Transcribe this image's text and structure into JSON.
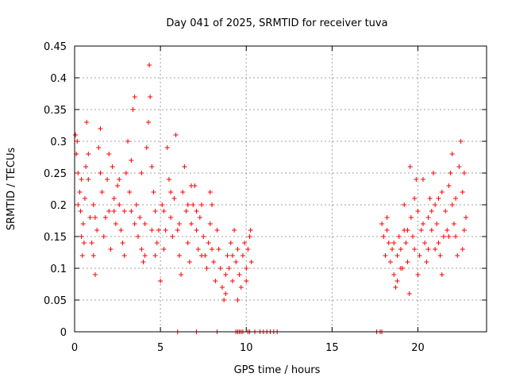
{
  "chart_data": {
    "type": "scatter",
    "title": "Day 041 of 2025, SRMTID for receiver tuva",
    "xlabel": "GPS time / hours",
    "ylabel": "SRMTID / TECUs",
    "xlim": [
      0,
      24
    ],
    "ylim": [
      0,
      0.45
    ],
    "xticks": [
      0,
      5,
      10,
      15,
      20
    ],
    "xtick_labels": [
      "0",
      "5",
      "10",
      "15",
      "20"
    ],
    "yticks": [
      0,
      0.05,
      0.1,
      0.15,
      0.2,
      0.25,
      0.3,
      0.35,
      0.4,
      0.45
    ],
    "ytick_labels": [
      "0",
      "0.05",
      "0.1",
      "0.15",
      "0.2",
      "0.25",
      "0.3",
      "0.35",
      "0.4",
      "0.45"
    ],
    "grid": true,
    "marker": "+",
    "color": "#ff0000",
    "series": [
      {
        "name": "SRMTID",
        "points": [
          [
            0.05,
            0.31
          ],
          [
            0.1,
            0.28
          ],
          [
            0.15,
            0.3
          ],
          [
            0.2,
            0.25
          ],
          [
            0.3,
            0.22
          ],
          [
            0.35,
            0.19
          ],
          [
            0.4,
            0.15
          ],
          [
            0.45,
            0.12
          ],
          [
            0.5,
            0.17
          ],
          [
            0.6,
            0.21
          ],
          [
            0.65,
            0.26
          ],
          [
            0.7,
            0.33
          ],
          [
            0.8,
            0.24
          ],
          [
            0.9,
            0.18
          ],
          [
            1.0,
            0.14
          ],
          [
            1.1,
            0.2
          ],
          [
            1.2,
            0.09
          ],
          [
            1.3,
            0.16
          ],
          [
            1.4,
            0.29
          ],
          [
            1.5,
            0.32
          ],
          [
            1.6,
            0.22
          ],
          [
            1.7,
            0.15
          ],
          [
            1.8,
            0.18
          ],
          [
            1.9,
            0.24
          ],
          [
            2.0,
            0.19
          ],
          [
            2.1,
            0.13
          ],
          [
            2.2,
            0.26
          ],
          [
            2.3,
            0.21
          ],
          [
            2.4,
            0.17
          ],
          [
            2.5,
            0.23
          ],
          [
            2.6,
            0.2
          ],
          [
            2.7,
            0.16
          ],
          [
            2.8,
            0.14
          ],
          [
            2.9,
            0.19
          ],
          [
            3.0,
            0.25
          ],
          [
            3.1,
            0.3
          ],
          [
            3.2,
            0.22
          ],
          [
            3.3,
            0.27
          ],
          [
            3.4,
            0.35
          ],
          [
            3.5,
            0.37
          ],
          [
            3.6,
            0.2
          ],
          [
            3.7,
            0.15
          ],
          [
            3.8,
            0.18
          ],
          [
            3.9,
            0.13
          ],
          [
            4.0,
            0.11
          ],
          [
            4.1,
            0.17
          ],
          [
            4.2,
            0.29
          ],
          [
            4.3,
            0.33
          ],
          [
            4.35,
            0.42
          ],
          [
            4.4,
            0.37
          ],
          [
            4.5,
            0.26
          ],
          [
            4.6,
            0.22
          ],
          [
            4.7,
            0.19
          ],
          [
            4.8,
            0.14
          ],
          [
            4.9,
            0.16
          ],
          [
            5.0,
            0.08
          ],
          [
            5.1,
            0.2
          ],
          [
            5.2,
            0.13
          ],
          [
            5.3,
            0.16
          ],
          [
            5.4,
            0.29
          ],
          [
            5.5,
            0.24
          ],
          [
            5.6,
            0.18
          ],
          [
            5.7,
            0.15
          ],
          [
            5.8,
            0.21
          ],
          [
            5.9,
            0.31
          ],
          [
            6.0,
            0.16
          ],
          [
            6.1,
            0.12
          ],
          [
            6.2,
            0.09
          ],
          [
            6.3,
            0.22
          ],
          [
            6.4,
            0.26
          ],
          [
            6.5,
            0.19
          ],
          [
            6.6,
            0.14
          ],
          [
            6.7,
            0.11
          ],
          [
            6.8,
            0.17
          ],
          [
            6.9,
            0.2
          ],
          [
            7.0,
            0.23
          ],
          [
            7.1,
            0.16
          ],
          [
            7.2,
            0.13
          ],
          [
            7.3,
            0.18
          ],
          [
            7.4,
            0.2
          ],
          [
            7.5,
            0.15
          ],
          [
            7.6,
            0.12
          ],
          [
            7.7,
            0.1
          ],
          [
            7.8,
            0.14
          ],
          [
            7.9,
            0.17
          ],
          [
            8.0,
            0.13
          ],
          [
            8.1,
            0.11
          ],
          [
            8.2,
            0.08
          ],
          [
            8.3,
            0.16
          ],
          [
            8.4,
            0.13
          ],
          [
            8.5,
            0.1
          ],
          [
            8.6,
            0.07
          ],
          [
            8.7,
            0.05
          ],
          [
            8.8,
            0.09
          ],
          [
            8.9,
            0.12
          ],
          [
            9.0,
            0.1
          ],
          [
            9.1,
            0.14
          ],
          [
            9.2,
            0.12
          ],
          [
            9.3,
            0.16
          ],
          [
            9.4,
            0.11
          ],
          [
            9.5,
            0.13
          ],
          [
            9.6,
            0.09
          ],
          [
            9.7,
            0.07
          ],
          [
            9.8,
            0.12
          ],
          [
            9.9,
            0.14
          ],
          [
            10.0,
            0.1
          ],
          [
            10.1,
            0.13
          ],
          [
            10.2,
            0.15
          ],
          [
            10.25,
            0.16
          ],
          [
            10.3,
            0.11
          ],
          [
            0.2,
            0.2
          ],
          [
            0.8,
            0.28
          ],
          [
            1.5,
            0.25
          ],
          [
            2.0,
            0.28
          ],
          [
            2.6,
            0.24
          ],
          [
            3.3,
            0.19
          ],
          [
            3.9,
            0.25
          ],
          [
            4.5,
            0.16
          ],
          [
            5.2,
            0.19
          ],
          [
            6.1,
            0.17
          ],
          [
            6.8,
            0.23
          ],
          [
            7.4,
            0.12
          ],
          [
            8.0,
            0.2
          ],
          [
            8.8,
            0.06
          ],
          [
            9.2,
            0.08
          ],
          [
            10.0,
            0.08
          ],
          [
            1.1,
            0.12
          ],
          [
            2.9,
            0.12
          ],
          [
            4.7,
            0.12
          ],
          [
            7.1,
            0.19
          ],
          [
            0.4,
            0.24
          ],
          [
            1.2,
            0.18
          ],
          [
            2.3,
            0.19
          ],
          [
            3.5,
            0.17
          ],
          [
            4.1,
            0.12
          ],
          [
            5.6,
            0.22
          ],
          [
            6.6,
            0.2
          ],
          [
            7.9,
            0.22
          ],
          [
            9.5,
            0.05
          ],
          [
            0.55,
            0.14
          ],
          [
            17.9,
            0.17
          ],
          [
            18.0,
            0.15
          ],
          [
            18.1,
            0.12
          ],
          [
            18.2,
            0.18
          ],
          [
            18.3,
            0.14
          ],
          [
            18.4,
            0.11
          ],
          [
            18.5,
            0.13
          ],
          [
            18.6,
            0.09
          ],
          [
            18.7,
            0.07
          ],
          [
            18.8,
            0.12
          ],
          [
            18.9,
            0.15
          ],
          [
            19.0,
            0.13
          ],
          [
            19.1,
            0.1
          ],
          [
            19.2,
            0.16
          ],
          [
            19.3,
            0.14
          ],
          [
            19.4,
            0.11
          ],
          [
            19.5,
            0.06
          ],
          [
            19.55,
            0.26
          ],
          [
            19.6,
            0.18
          ],
          [
            19.7,
            0.15
          ],
          [
            19.8,
            0.21
          ],
          [
            19.9,
            0.24
          ],
          [
            20.0,
            0.19
          ],
          [
            20.1,
            0.12
          ],
          [
            20.2,
            0.16
          ],
          [
            20.3,
            0.17
          ],
          [
            20.4,
            0.14
          ],
          [
            20.5,
            0.11
          ],
          [
            20.6,
            0.18
          ],
          [
            20.7,
            0.21
          ],
          [
            20.8,
            0.16
          ],
          [
            20.9,
            0.25
          ],
          [
            21.0,
            0.2
          ],
          [
            21.1,
            0.17
          ],
          [
            21.2,
            0.14
          ],
          [
            21.3,
            0.12
          ],
          [
            21.4,
            0.09
          ],
          [
            21.5,
            0.15
          ],
          [
            21.6,
            0.19
          ],
          [
            21.7,
            0.16
          ],
          [
            21.8,
            0.23
          ],
          [
            21.9,
            0.25
          ],
          [
            22.0,
            0.2
          ],
          [
            22.1,
            0.17
          ],
          [
            22.2,
            0.15
          ],
          [
            22.3,
            0.12
          ],
          [
            22.4,
            0.26
          ],
          [
            22.5,
            0.3
          ],
          [
            22.6,
            0.22
          ],
          [
            22.7,
            0.16
          ],
          [
            22.8,
            0.18
          ],
          [
            18.2,
            0.16
          ],
          [
            18.6,
            0.14
          ],
          [
            19.0,
            0.1
          ],
          [
            19.4,
            0.16
          ],
          [
            19.8,
            0.13
          ],
          [
            20.3,
            0.24
          ],
          [
            20.6,
            0.13
          ],
          [
            21.0,
            0.13
          ],
          [
            21.4,
            0.22
          ],
          [
            21.8,
            0.15
          ],
          [
            22.2,
            0.21
          ],
          [
            22.6,
            0.13
          ],
          [
            18.8,
            0.08
          ],
          [
            20.0,
            0.09
          ],
          [
            21.2,
            0.21
          ],
          [
            22.0,
            0.28
          ],
          [
            22.7,
            0.25
          ],
          [
            19.2,
            0.2
          ],
          [
            20.8,
            0.19
          ],
          [
            6.0,
            0
          ],
          [
            7.1,
            0
          ],
          [
            8.3,
            0
          ],
          [
            9.4,
            0
          ],
          [
            9.5,
            0
          ],
          [
            9.6,
            0
          ],
          [
            9.7,
            0
          ],
          [
            9.8,
            0
          ],
          [
            10.1,
            0
          ],
          [
            10.2,
            0
          ],
          [
            10.5,
            0
          ],
          [
            10.8,
            0
          ],
          [
            11.0,
            0
          ],
          [
            11.2,
            0
          ],
          [
            11.4,
            0
          ],
          [
            11.6,
            0
          ],
          [
            11.8,
            0
          ],
          [
            17.6,
            0
          ],
          [
            17.8,
            0
          ],
          [
            17.9,
            0
          ]
        ]
      }
    ]
  }
}
